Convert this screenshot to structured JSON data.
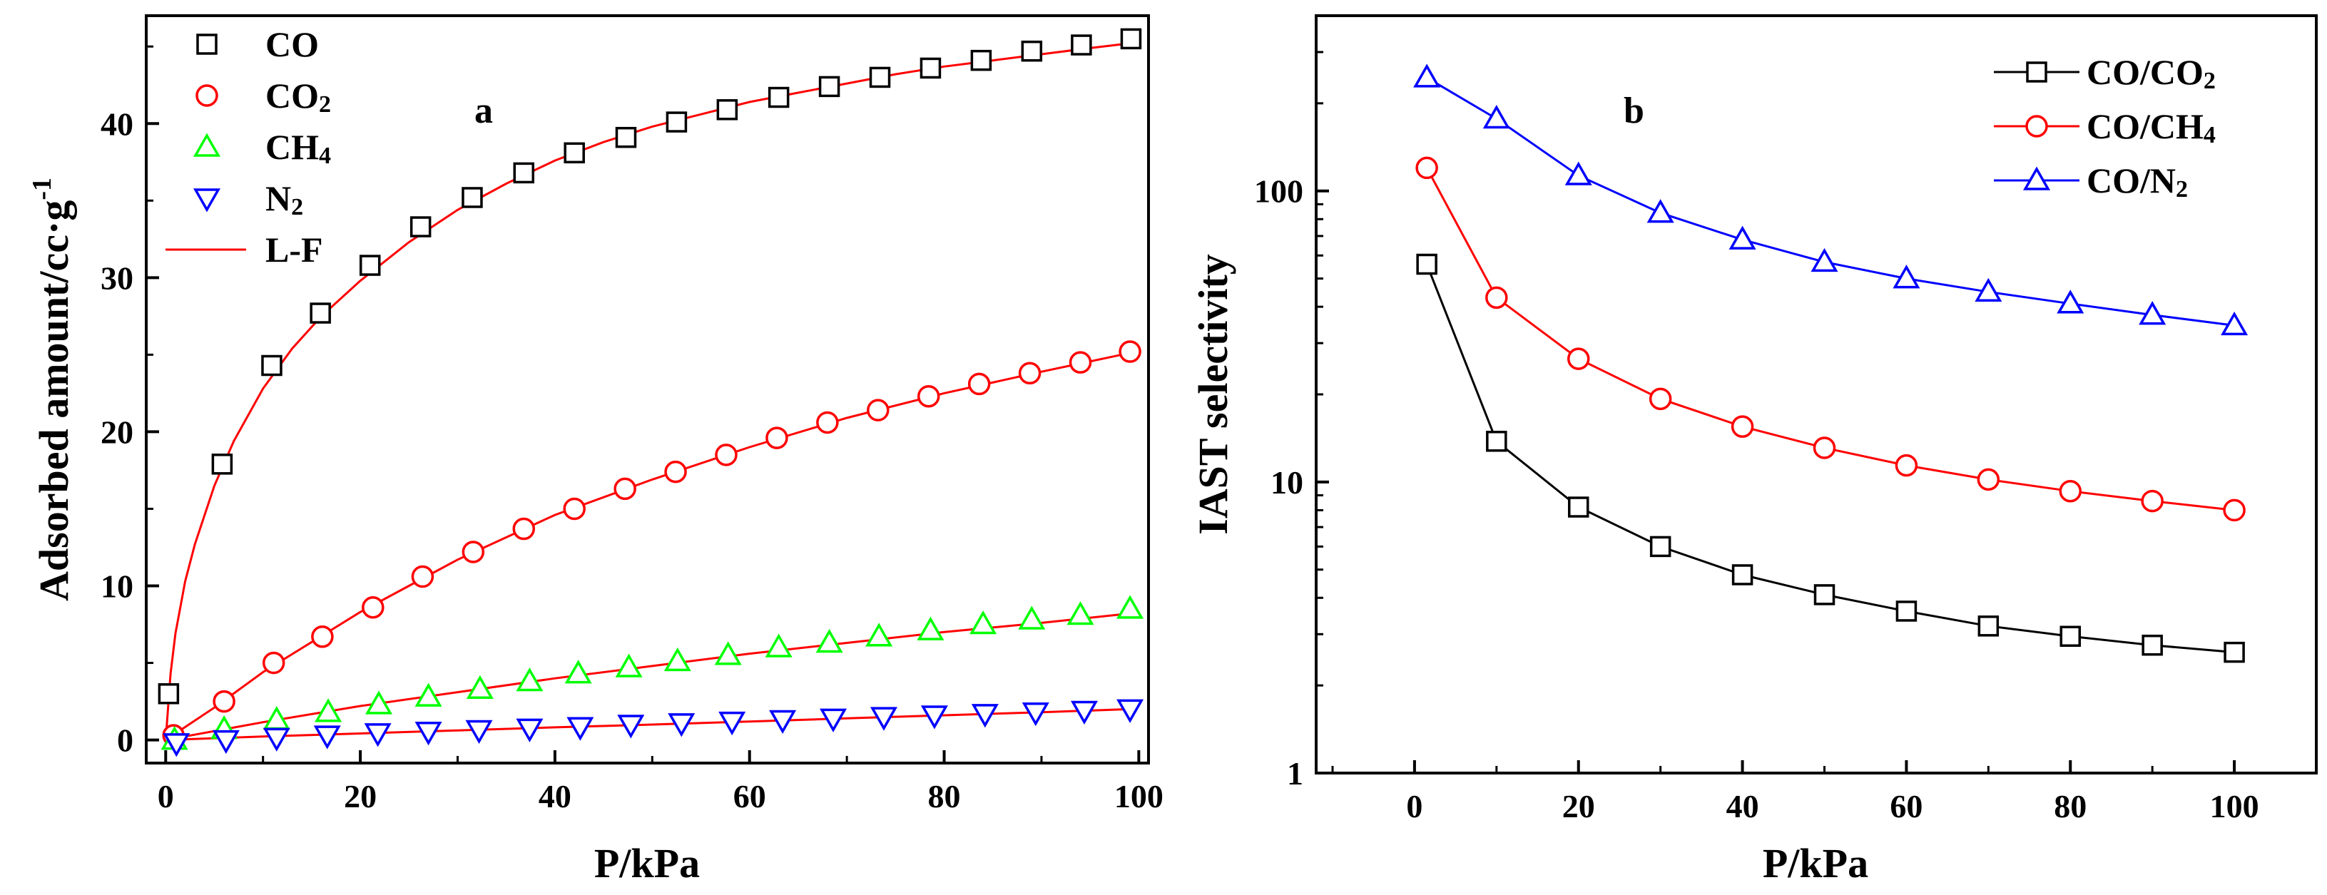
{
  "chart_data": [
    {
      "type": "scatter",
      "panel_label": "a",
      "xlabel": "P/kPa",
      "ylabel": "Adsorbed amount/cc·g",
      "ylabel_superscript": "-1",
      "xlim": [
        -2,
        101
      ],
      "ylim": [
        -1.5,
        47
      ],
      "xticks": [
        0,
        20,
        40,
        60,
        80,
        100
      ],
      "yticks": [
        0,
        10,
        20,
        30,
        40
      ],
      "series": [
        {
          "name": "CO",
          "name_base": "CO",
          "name_sub": "",
          "marker": "square",
          "color": "#000000",
          "x": [
            0.3,
            5.8,
            10.9,
            15.9,
            21.0,
            26.2,
            31.5,
            36.8,
            42.0,
            47.3,
            52.5,
            57.7,
            63.0,
            68.2,
            73.4,
            78.6,
            83.8,
            89.0,
            94.1,
            99.2
          ],
          "y": [
            3.0,
            17.9,
            24.3,
            27.7,
            30.8,
            33.3,
            35.2,
            36.8,
            38.1,
            39.1,
            40.1,
            40.9,
            41.7,
            42.4,
            43.0,
            43.6,
            44.1,
            44.7,
            45.1,
            45.5
          ]
        },
        {
          "name": "CO2",
          "name_base": "CO",
          "name_sub": "2",
          "marker": "circle",
          "color": "#ff0000",
          "x": [
            0.8,
            6.0,
            11.1,
            16.1,
            21.3,
            26.4,
            31.6,
            36.8,
            42.0,
            47.2,
            52.4,
            57.6,
            62.8,
            68.0,
            73.2,
            78.4,
            83.6,
            88.8,
            94.0,
            99.1
          ],
          "y": [
            0.3,
            2.5,
            5.0,
            6.7,
            8.6,
            10.6,
            12.2,
            13.7,
            15.0,
            16.3,
            17.4,
            18.5,
            19.6,
            20.6,
            21.4,
            22.3,
            23.1,
            23.8,
            24.5,
            25.2
          ]
        },
        {
          "name": "CH4",
          "name_base": "CH",
          "name_sub": "4",
          "marker": "triangle-up",
          "color": "#00ff00",
          "x": [
            0.9,
            6.0,
            11.4,
            16.7,
            21.9,
            27.0,
            32.3,
            37.4,
            42.4,
            47.6,
            52.6,
            57.8,
            63.0,
            68.2,
            73.3,
            78.6,
            84.0,
            89.0,
            94.0,
            99.1
          ],
          "y": [
            0.0,
            0.7,
            1.3,
            1.8,
            2.3,
            2.8,
            3.3,
            3.8,
            4.3,
            4.7,
            5.1,
            5.5,
            6.0,
            6.3,
            6.7,
            7.1,
            7.5,
            7.8,
            8.1,
            8.5
          ]
        },
        {
          "name": "N2",
          "name_base": "N",
          "name_sub": "2",
          "marker": "triangle-down",
          "color": "#0000ff",
          "x": [
            1.1,
            6.2,
            11.4,
            16.6,
            21.8,
            27.0,
            32.2,
            37.4,
            42.6,
            47.8,
            53.0,
            58.2,
            63.4,
            68.6,
            73.8,
            79.0,
            84.2,
            89.4,
            94.4,
            99.1
          ],
          "y": [
            -0.2,
            0.0,
            0.15,
            0.3,
            0.45,
            0.55,
            0.65,
            0.75,
            0.85,
            1.0,
            1.1,
            1.2,
            1.3,
            1.4,
            1.5,
            1.6,
            1.7,
            1.8,
            1.9,
            2.0
          ]
        },
        {
          "name": "L-F",
          "name_base": "L-F",
          "name_sub": "",
          "marker": "line",
          "color": "#ff0000",
          "fits": [
            {
              "for": "CO",
              "x": [
                0,
                0.5,
                1,
                2,
                3,
                5,
                7,
                10,
                13,
                16,
                20,
                25,
                30,
                35,
                40,
                45,
                50,
                55,
                60,
                65,
                70,
                75,
                80,
                85,
                90,
                95,
                99
              ],
              "y": [
                0,
                4.3,
                6.9,
                10.3,
                12.7,
                16.5,
                19.4,
                22.8,
                25.4,
                27.5,
                29.8,
                32.3,
                34.4,
                36.1,
                37.6,
                38.8,
                39.8,
                40.6,
                41.4,
                42.0,
                42.6,
                43.2,
                43.7,
                44.1,
                44.5,
                44.9,
                45.2
              ]
            },
            {
              "for": "CO2",
              "x": [
                0,
                5,
                10,
                20,
                30,
                40,
                50,
                60,
                70,
                80,
                90,
                99
              ],
              "y": [
                0,
                2.1,
                4.4,
                8.3,
                11.7,
                14.6,
                16.9,
                19.0,
                20.9,
                22.5,
                23.9,
                25.1
              ]
            },
            {
              "for": "CH4",
              "x": [
                0,
                10,
                20,
                30,
                40,
                50,
                60,
                70,
                80,
                90,
                99
              ],
              "y": [
                0,
                1.15,
                2.2,
                3.1,
                4.0,
                4.8,
                5.6,
                6.3,
                7.0,
                7.6,
                8.2
              ]
            },
            {
              "for": "N2",
              "x": [
                0,
                10,
                20,
                30,
                40,
                50,
                60,
                70,
                80,
                90,
                99
              ],
              "y": [
                0,
                0.22,
                0.42,
                0.62,
                0.82,
                1.0,
                1.2,
                1.4,
                1.6,
                1.8,
                2.0
              ]
            }
          ]
        }
      ]
    },
    {
      "type": "line",
      "panel_label": "b",
      "xlabel": "P/kPa",
      "ylabel": "IAST selectivity",
      "yscale": "log",
      "xlim": [
        -12,
        110
      ],
      "ylim": [
        1,
        400
      ],
      "xticks": [
        0,
        20,
        40,
        60,
        80,
        100
      ],
      "yticks": [
        1,
        10,
        100
      ],
      "x": [
        1.5,
        10,
        20,
        30,
        40,
        50,
        60,
        70,
        80,
        90,
        100
      ],
      "series": [
        {
          "name": "CO/CO2",
          "name_base": "CO/CO",
          "name_sub": "2",
          "marker": "square",
          "color": "#000000",
          "values": [
            56,
            13.8,
            8.2,
            6.0,
            4.8,
            4.1,
            3.6,
            3.2,
            2.95,
            2.75,
            2.6
          ]
        },
        {
          "name": "CO/CH4",
          "name_base": "CO/CH",
          "name_sub": "4",
          "marker": "circle",
          "color": "#ff0000",
          "values": [
            120,
            43,
            26.5,
            19.3,
            15.5,
            13.1,
            11.4,
            10.2,
            9.3,
            8.6,
            8.0
          ]
        },
        {
          "name": "CO/N2",
          "name_base": "CO/N",
          "name_sub": "2",
          "marker": "triangle-up",
          "color": "#0000ff",
          "values": [
            245,
            177,
            113,
            84,
            68,
            57,
            50,
            45,
            41,
            37.5,
            34.5
          ]
        }
      ]
    }
  ]
}
